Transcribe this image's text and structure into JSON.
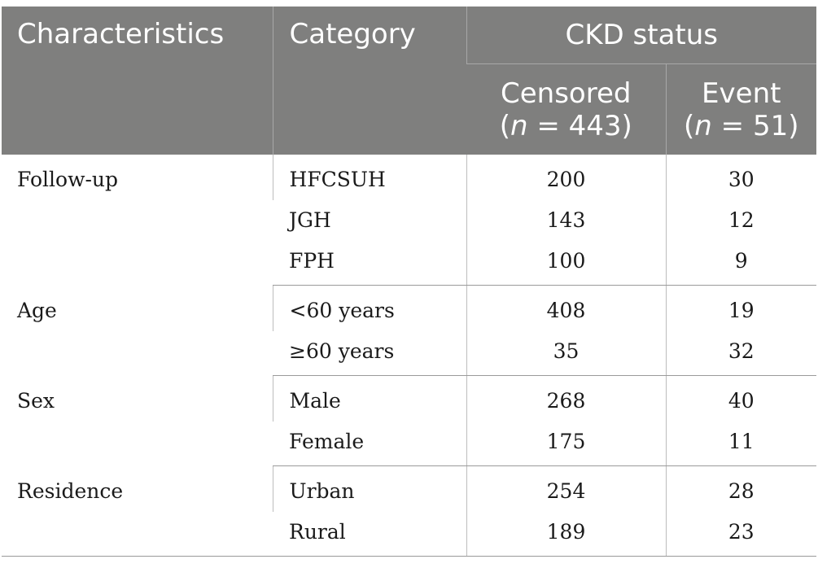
{
  "header": {
    "characteristics": "Characteristics",
    "category": "Category",
    "group": "CKD status",
    "censored_label": "Censored",
    "censored_n_prefix": "(",
    "censored_n_italic": "n",
    "censored_n_suffix": " = 443)",
    "event_label": "Event",
    "event_n_prefix": "(",
    "event_n_italic": "n",
    "event_n_suffix": " = 51)"
  },
  "groups": [
    {
      "characteristic": "Follow-up",
      "rows": [
        {
          "category": "HFCSUH",
          "censored": "200",
          "event": "30"
        },
        {
          "category": "JGH",
          "censored": "143",
          "event": "12"
        },
        {
          "category": "FPH",
          "censored": "100",
          "event": "9"
        }
      ]
    },
    {
      "characteristic": "Age",
      "rows": [
        {
          "category": "<60 years",
          "censored": "408",
          "event": "19"
        },
        {
          "category": "≥60 years",
          "censored": "35",
          "event": "32"
        }
      ]
    },
    {
      "characteristic": "Sex",
      "rows": [
        {
          "category": "Male",
          "censored": "268",
          "event": "40"
        },
        {
          "category": "Female",
          "censored": "175",
          "event": "11"
        }
      ]
    },
    {
      "characteristic": "Residence",
      "rows": [
        {
          "category": "Urban",
          "censored": "254",
          "event": "28"
        },
        {
          "category": "Rural",
          "censored": "189",
          "event": "23"
        }
      ]
    }
  ]
}
